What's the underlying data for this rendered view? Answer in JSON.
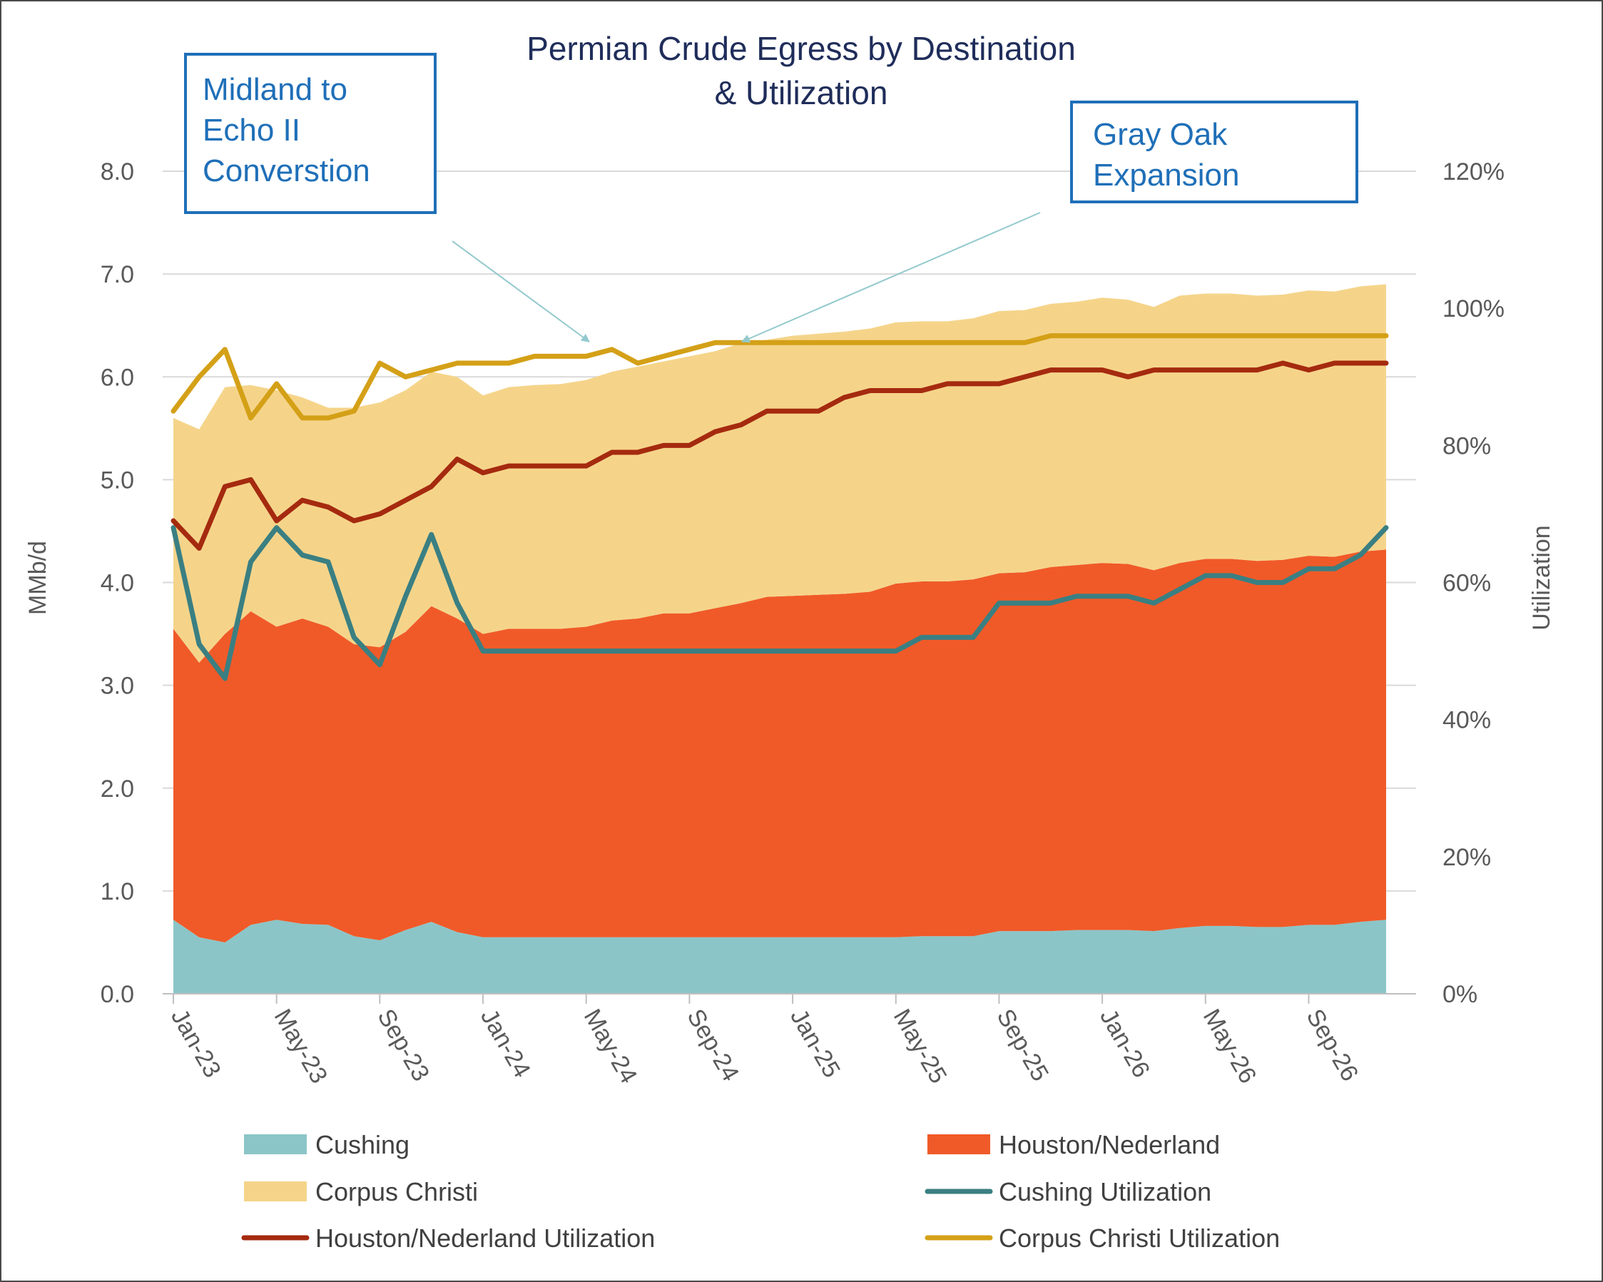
{
  "chart_data": {
    "type": "area",
    "title_lines": [
      "Permian Crude Egress by Destination",
      "& Utilization"
    ],
    "ylabel": "MMb/d",
    "y2label": "Utilization",
    "ylim": [
      0,
      8
    ],
    "y2lim": [
      0,
      1.2
    ],
    "yticks": [
      "0.0",
      "1.0",
      "2.0",
      "3.0",
      "4.0",
      "5.0",
      "6.0",
      "7.0",
      "8.0"
    ],
    "y2ticks": [
      "0%",
      "20%",
      "40%",
      "60%",
      "80%",
      "100%",
      "120%"
    ],
    "xtick_labels": [
      "Jan-23",
      "May-23",
      "Sep-23",
      "Jan-24",
      "May-24",
      "Sep-24",
      "Jan-25",
      "May-25",
      "Sep-25",
      "Jan-26",
      "May-26",
      "Sep-26"
    ],
    "x": [
      "Jan-23",
      "Feb-23",
      "Mar-23",
      "Apr-23",
      "May-23",
      "Jun-23",
      "Jul-23",
      "Aug-23",
      "Sep-23",
      "Oct-23",
      "Nov-23",
      "Dec-23",
      "Jan-24",
      "Feb-24",
      "Mar-24",
      "Apr-24",
      "May-24",
      "Jun-24",
      "Jul-24",
      "Aug-24",
      "Sep-24",
      "Oct-24",
      "Nov-24",
      "Dec-24",
      "Jan-25",
      "Feb-25",
      "Mar-25",
      "Apr-25",
      "May-25",
      "Jun-25",
      "Jul-25",
      "Aug-25",
      "Sep-25",
      "Oct-25",
      "Nov-25",
      "Dec-25",
      "Jan-26",
      "Feb-26",
      "Mar-26",
      "Apr-26",
      "May-26",
      "Jun-26",
      "Jul-26",
      "Aug-26",
      "Sep-26",
      "Oct-26",
      "Nov-26",
      "Dec-26"
    ],
    "area_series": [
      {
        "name": "Cushing",
        "color": "#8cc5c7",
        "values": [
          0.72,
          0.55,
          0.5,
          0.67,
          0.72,
          0.68,
          0.67,
          0.56,
          0.52,
          0.62,
          0.7,
          0.6,
          0.55,
          0.55,
          0.55,
          0.55,
          0.55,
          0.55,
          0.55,
          0.55,
          0.55,
          0.55,
          0.55,
          0.55,
          0.55,
          0.55,
          0.55,
          0.55,
          0.55,
          0.56,
          0.56,
          0.56,
          0.61,
          0.61,
          0.61,
          0.62,
          0.62,
          0.62,
          0.61,
          0.64,
          0.66,
          0.66,
          0.65,
          0.65,
          0.67,
          0.67,
          0.7,
          0.72
        ]
      },
      {
        "name": "Houston/Nederland",
        "color": "#f05a28",
        "values": [
          2.83,
          2.67,
          3.0,
          3.05,
          2.85,
          2.97,
          2.9,
          2.84,
          2.85,
          2.9,
          3.07,
          3.05,
          2.95,
          3.0,
          3.0,
          3.0,
          3.02,
          3.08,
          3.1,
          3.15,
          3.15,
          3.2,
          3.25,
          3.31,
          3.32,
          3.33,
          3.34,
          3.36,
          3.44,
          3.45,
          3.45,
          3.47,
          3.48,
          3.49,
          3.54,
          3.55,
          3.57,
          3.56,
          3.51,
          3.55,
          3.57,
          3.57,
          3.56,
          3.57,
          3.59,
          3.58,
          3.6,
          3.6
        ]
      },
      {
        "name": "Corpus Christi",
        "color": "#f5d48a",
        "values": [
          2.05,
          2.27,
          2.4,
          2.2,
          2.3,
          2.15,
          2.13,
          2.3,
          2.38,
          2.35,
          2.28,
          2.35,
          2.32,
          2.35,
          2.37,
          2.38,
          2.4,
          2.42,
          2.45,
          2.45,
          2.5,
          2.5,
          2.53,
          2.5,
          2.53,
          2.54,
          2.55,
          2.56,
          2.54,
          2.53,
          2.53,
          2.54,
          2.55,
          2.55,
          2.56,
          2.56,
          2.58,
          2.57,
          2.56,
          2.6,
          2.58,
          2.58,
          2.58,
          2.58,
          2.58,
          2.58,
          2.58,
          2.58
        ]
      }
    ],
    "line_series": [
      {
        "name": "Cushing Utilization",
        "color": "#3a7f82",
        "values": [
          0.68,
          0.51,
          0.46,
          0.63,
          0.68,
          0.64,
          0.63,
          0.52,
          0.48,
          0.58,
          0.67,
          0.57,
          0.5,
          0.5,
          0.5,
          0.5,
          0.5,
          0.5,
          0.5,
          0.5,
          0.5,
          0.5,
          0.5,
          0.5,
          0.5,
          0.5,
          0.5,
          0.5,
          0.5,
          0.52,
          0.52,
          0.52,
          0.57,
          0.57,
          0.57,
          0.58,
          0.58,
          0.58,
          0.57,
          0.59,
          0.61,
          0.61,
          0.6,
          0.6,
          0.62,
          0.62,
          0.64,
          0.68
        ]
      },
      {
        "name": "Houston/Nederland Utilization",
        "color": "#a52a0f",
        "values": [
          0.69,
          0.65,
          0.74,
          0.75,
          0.69,
          0.72,
          0.71,
          0.69,
          0.7,
          0.72,
          0.74,
          0.78,
          0.76,
          0.77,
          0.77,
          0.77,
          0.77,
          0.79,
          0.79,
          0.8,
          0.8,
          0.82,
          0.83,
          0.85,
          0.85,
          0.85,
          0.87,
          0.88,
          0.88,
          0.88,
          0.89,
          0.89,
          0.89,
          0.9,
          0.91,
          0.91,
          0.91,
          0.9,
          0.91,
          0.91,
          0.91,
          0.91,
          0.91,
          0.92,
          0.91,
          0.92,
          0.92,
          0.92
        ]
      },
      {
        "name": "Corpus Christi Utilization",
        "color": "#d4a017",
        "values": [
          0.85,
          0.9,
          0.94,
          0.84,
          0.89,
          0.84,
          0.84,
          0.85,
          0.92,
          0.9,
          0.91,
          0.92,
          0.92,
          0.92,
          0.93,
          0.93,
          0.93,
          0.94,
          0.92,
          0.93,
          0.94,
          0.95,
          0.95,
          0.95,
          0.95,
          0.95,
          0.95,
          0.95,
          0.95,
          0.95,
          0.95,
          0.95,
          0.95,
          0.95,
          0.96,
          0.96,
          0.96,
          0.96,
          0.96,
          0.96,
          0.96,
          0.96,
          0.96,
          0.96,
          0.96,
          0.96,
          0.96,
          0.96
        ]
      }
    ],
    "legend": {
      "position": "bottom",
      "items": [
        {
          "label": "Cushing",
          "kind": "area",
          "color": "#8cc5c7"
        },
        {
          "label": "Houston/Nederland",
          "kind": "area",
          "color": "#f05a28"
        },
        {
          "label": "Corpus Christi",
          "kind": "area",
          "color": "#f5d48a"
        },
        {
          "label": "Cushing Utilization",
          "kind": "line",
          "color": "#3a7f82"
        },
        {
          "label": "Houston/Nederland Utilization",
          "kind": "line",
          "color": "#a52a0f"
        },
        {
          "label": "Corpus Christi Utilization",
          "kind": "line",
          "color": "#d4a017"
        }
      ]
    },
    "annotations": [
      {
        "lines": [
          "Midland to",
          "Echo II",
          "Converstion"
        ],
        "points_to": "May-24"
      },
      {
        "lines": [
          "Gray Oak",
          "Expansion"
        ],
        "points_to": "Oct-24"
      }
    ],
    "grid": true,
    "stacked": true
  }
}
